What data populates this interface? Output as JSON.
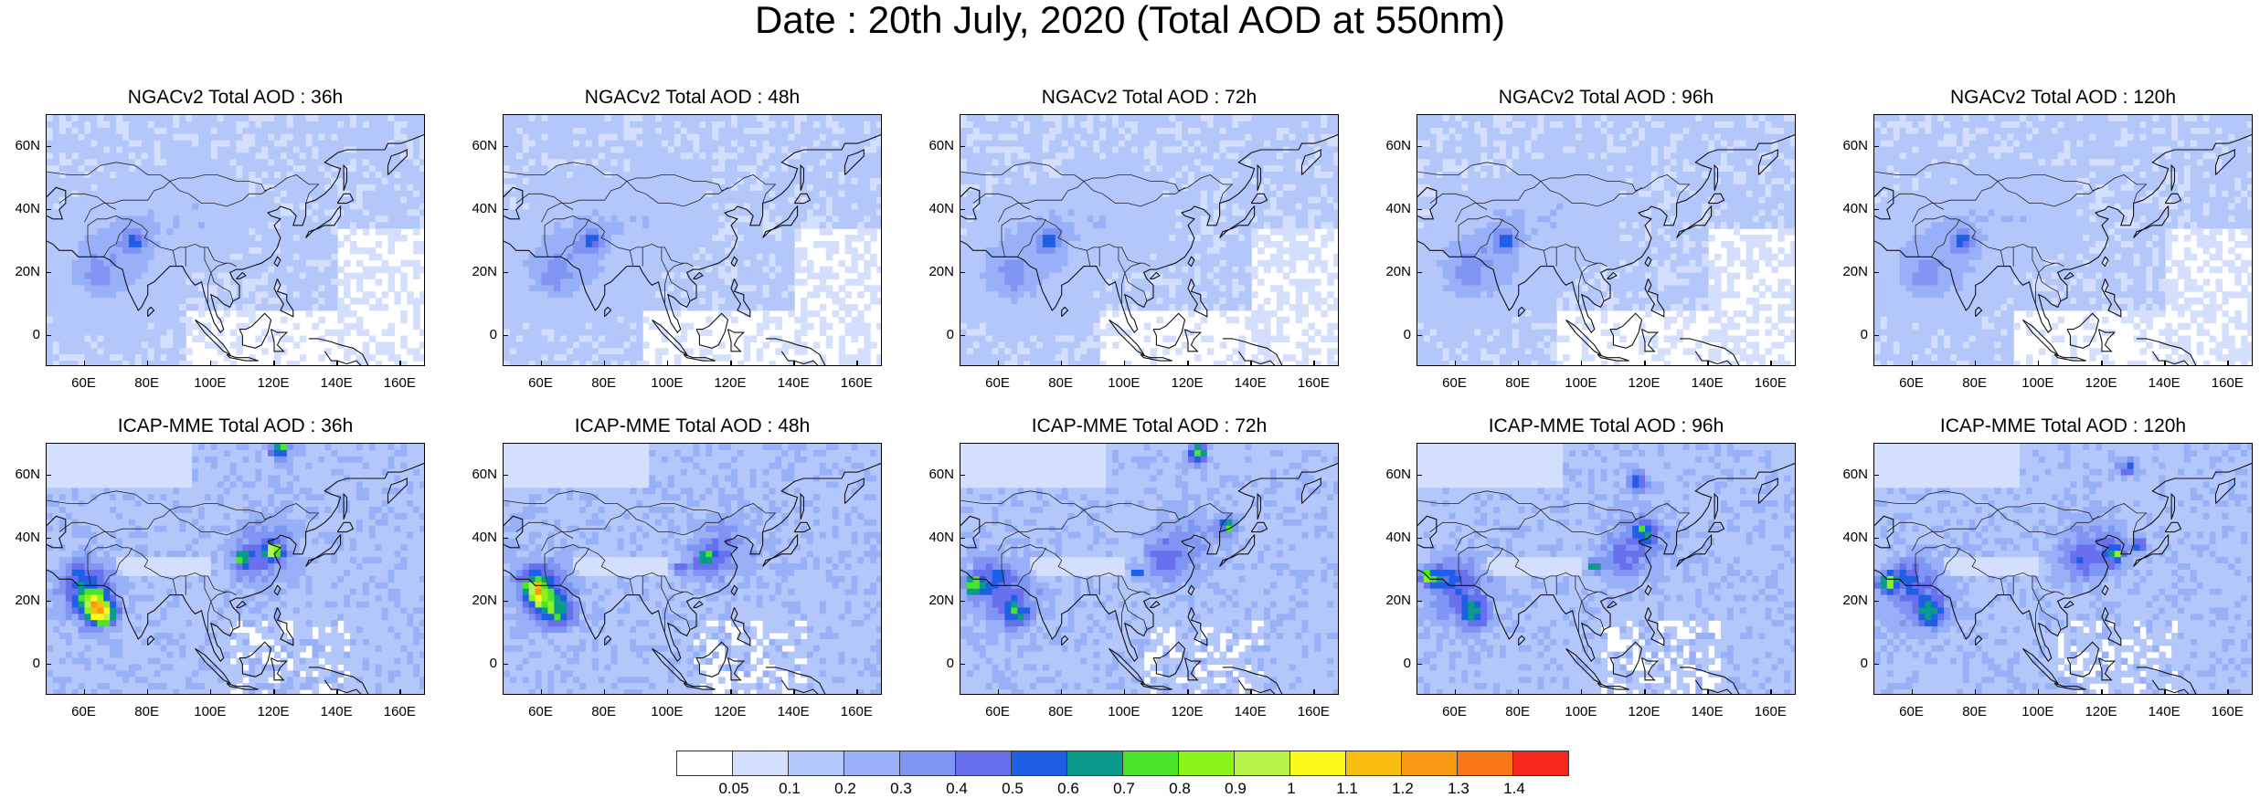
{
  "title": "Date : 20th July, 2020 (Total AOD at 550nm)",
  "panels": [
    {
      "row": 0,
      "col": 0,
      "title": "NGACv2 Total AOD : 36h"
    },
    {
      "row": 0,
      "col": 1,
      "title": "NGACv2 Total AOD : 48h"
    },
    {
      "row": 0,
      "col": 2,
      "title": "NGACv2 Total AOD : 72h"
    },
    {
      "row": 0,
      "col": 3,
      "title": "NGACv2 Total AOD : 96h"
    },
    {
      "row": 0,
      "col": 4,
      "title": "NGACv2 Total AOD : 120h"
    },
    {
      "row": 1,
      "col": 0,
      "title": "ICAP-MME Total AOD : 36h"
    },
    {
      "row": 1,
      "col": 1,
      "title": "ICAP-MME Total AOD : 48h"
    },
    {
      "row": 1,
      "col": 2,
      "title": "ICAP-MME Total AOD : 72h"
    },
    {
      "row": 1,
      "col": 3,
      "title": "ICAP-MME Total AOD : 96h"
    },
    {
      "row": 1,
      "col": 4,
      "title": "ICAP-MME Total AOD : 120h"
    }
  ],
  "map": {
    "lon_range": [
      48,
      168
    ],
    "lat_range": [
      -10,
      70
    ],
    "x_ticks": [
      "60E",
      "80E",
      "100E",
      "120E",
      "140E",
      "160E"
    ],
    "x_tick_values": [
      60,
      80,
      100,
      120,
      140,
      160
    ],
    "y_ticks": [
      "60N",
      "40N",
      "20N",
      "0"
    ],
    "y_tick_values": [
      60,
      40,
      20,
      0
    ]
  },
  "colorbar": {
    "labels": [
      "0.05",
      "0.1",
      "0.2",
      "0.3",
      "0.4",
      "0.5",
      "0.6",
      "0.7",
      "0.8",
      "0.9",
      "1",
      "1.1",
      "1.2",
      "1.3",
      "1.4"
    ],
    "colors": [
      "#ffffff",
      "#d3dffd",
      "#b4c7fb",
      "#98b0f8",
      "#7f95f4",
      "#6870ee",
      "#1f5fe6",
      "#0a9b8d",
      "#49e52a",
      "#8bf51a",
      "#b6f44a",
      "#fdfb1b",
      "#f9bd10",
      "#f99a14",
      "#f77717",
      "#f5261c"
    ]
  }
}
